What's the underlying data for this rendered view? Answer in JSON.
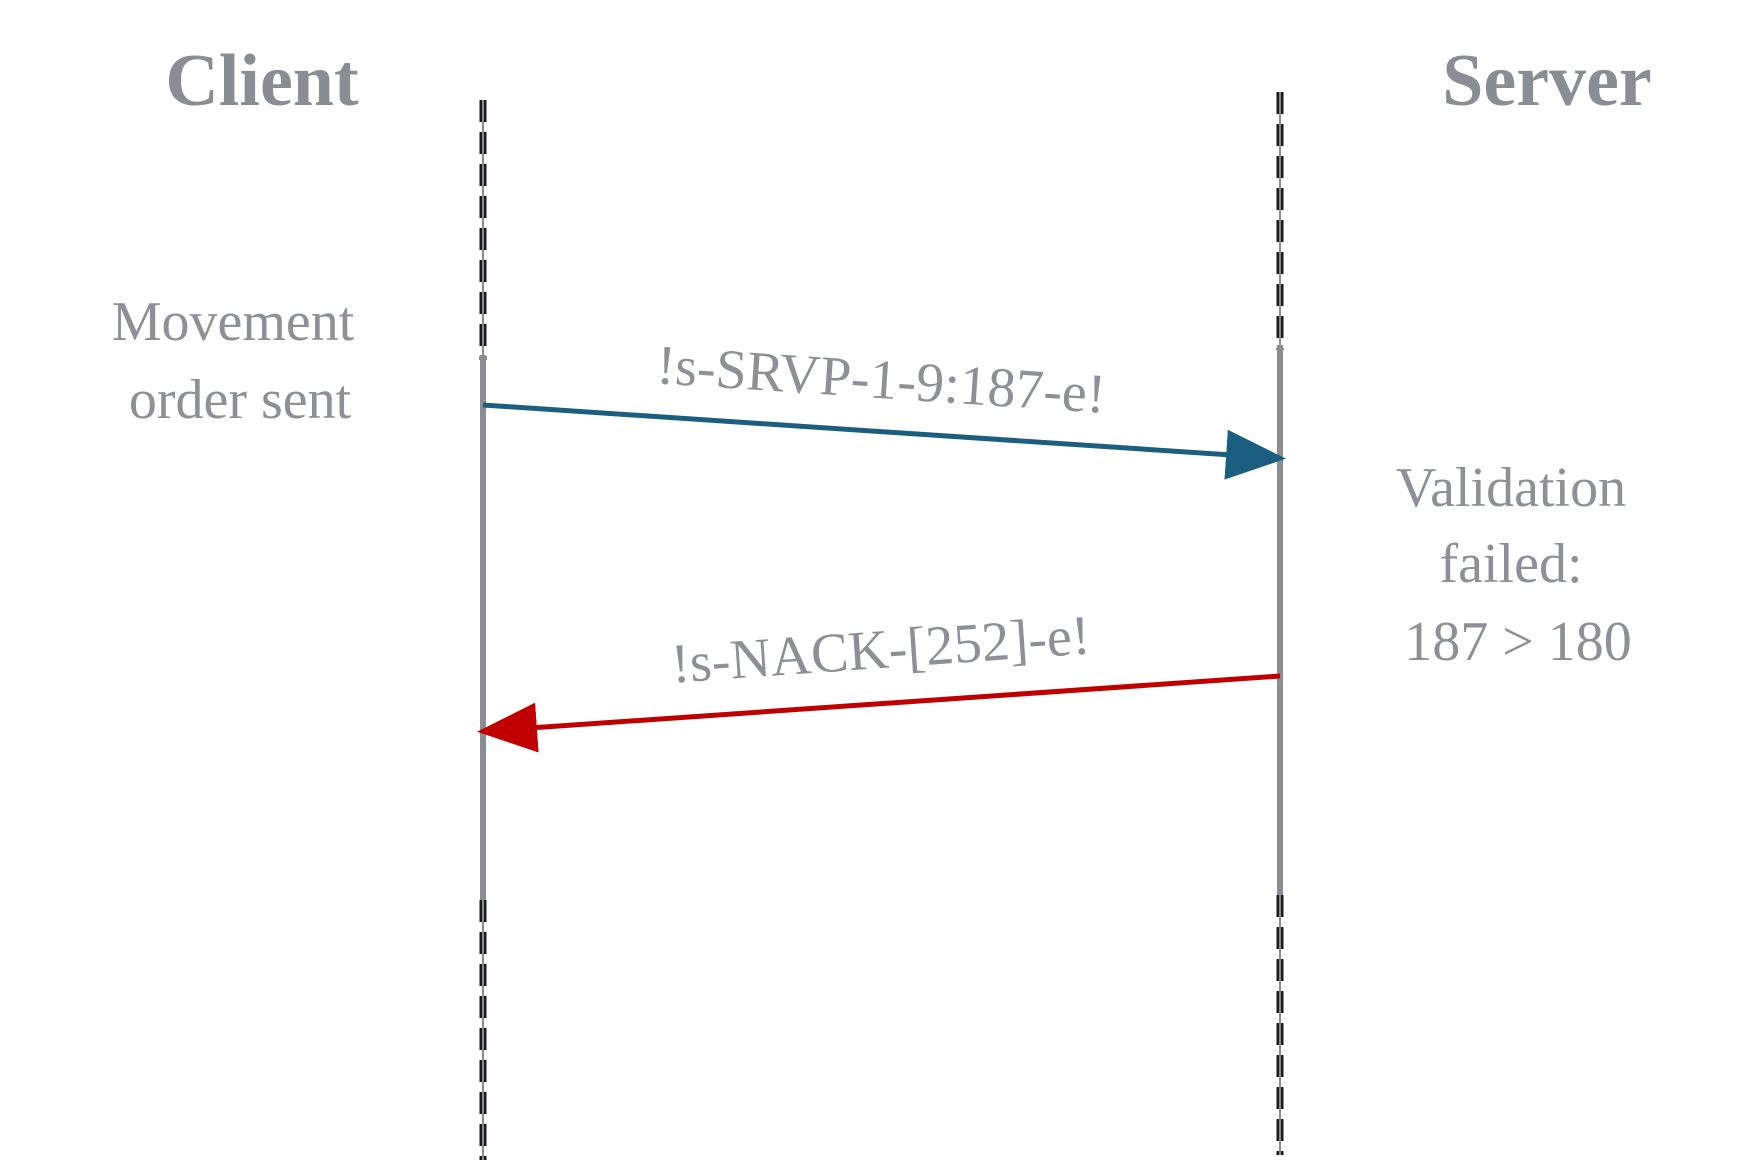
{
  "participants": {
    "client": "Client",
    "server": "Server"
  },
  "notes": {
    "client_note": [
      "Movement",
      "order sent"
    ],
    "server_note": [
      "Validation",
      "failed:",
      "187 > 180"
    ]
  },
  "messages": [
    {
      "label": "!s-SRVP-1-9:187-e!",
      "from": "client",
      "to": "server",
      "color": "#1b5e80"
    },
    {
      "label": "!s-NACK-[252]-e!",
      "from": "server",
      "to": "client",
      "color": "#c00000"
    }
  ],
  "colors": {
    "lifeline_solid": "#8a8d93",
    "lifeline_dash": "#1a1a1a",
    "text": "#8a8d93"
  }
}
